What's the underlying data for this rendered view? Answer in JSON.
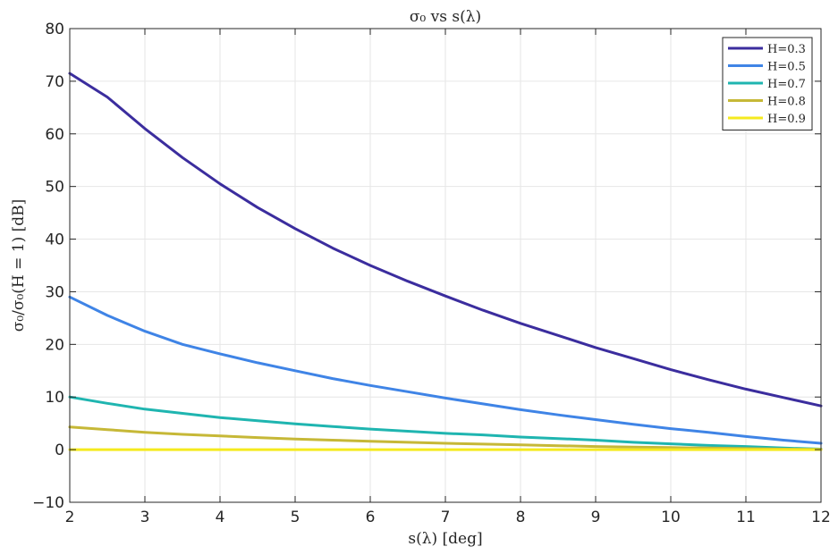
{
  "chart_data": {
    "type": "line",
    "title": "σ₀ vs s(λ)",
    "xlabel": "s(λ) [deg]",
    "ylabel": "σ₀/σ₀(H = 1) [dB]",
    "xlim": [
      2,
      12
    ],
    "ylim": [
      -10,
      80
    ],
    "xticks": [
      2,
      3,
      4,
      5,
      6,
      7,
      8,
      9,
      10,
      11,
      12
    ],
    "yticks": [
      -10,
      0,
      10,
      20,
      30,
      40,
      50,
      60,
      70,
      80
    ],
    "ytick_labels": [
      "−10",
      "0",
      "10",
      "20",
      "30",
      "40",
      "50",
      "60",
      "70",
      "80"
    ],
    "grid": true,
    "legend_position": "top-right",
    "x": [
      2,
      2.5,
      3,
      3.5,
      4,
      4.5,
      5,
      5.5,
      6,
      6.5,
      7,
      7.5,
      8,
      8.5,
      9,
      9.5,
      10,
      10.5,
      11,
      11.5,
      12
    ],
    "series": [
      {
        "name": "H=0.3",
        "color": "#3b2d9e",
        "values": [
          71.5,
          67,
          61,
          55.5,
          50.5,
          46,
          42,
          38.3,
          35,
          32,
          29.2,
          26.5,
          24,
          21.7,
          19.4,
          17.3,
          15.2,
          13.3,
          11.5,
          9.9,
          8.3
        ]
      },
      {
        "name": "H=0.5",
        "color": "#3f84e6",
        "values": [
          29,
          25.5,
          22.5,
          20,
          18.2,
          16.5,
          15,
          13.5,
          12.2,
          11,
          9.8,
          8.7,
          7.6,
          6.6,
          5.7,
          4.8,
          4,
          3.3,
          2.5,
          1.8,
          1.2
        ]
      },
      {
        "name": "H=0.7",
        "color": "#1fb5b0",
        "values": [
          10,
          8.8,
          7.7,
          6.9,
          6.1,
          5.5,
          4.9,
          4.4,
          3.9,
          3.5,
          3.1,
          2.8,
          2.4,
          2.1,
          1.8,
          1.4,
          1.1,
          0.8,
          0.6,
          0.3,
          0.1
        ]
      },
      {
        "name": "H=0.8",
        "color": "#c6b837",
        "values": [
          4.3,
          3.8,
          3.3,
          2.9,
          2.6,
          2.3,
          2.0,
          1.8,
          1.6,
          1.4,
          1.2,
          1.05,
          0.9,
          0.75,
          0.6,
          0.5,
          0.4,
          0.3,
          0.2,
          0.1,
          0.05
        ]
      },
      {
        "name": "H=0.9",
        "color": "#f5ea1e",
        "values": [
          0,
          0,
          0,
          0,
          0,
          0,
          0,
          0,
          0,
          0,
          0,
          0,
          0,
          0,
          0,
          0,
          0,
          0,
          0,
          0,
          0
        ]
      }
    ]
  }
}
